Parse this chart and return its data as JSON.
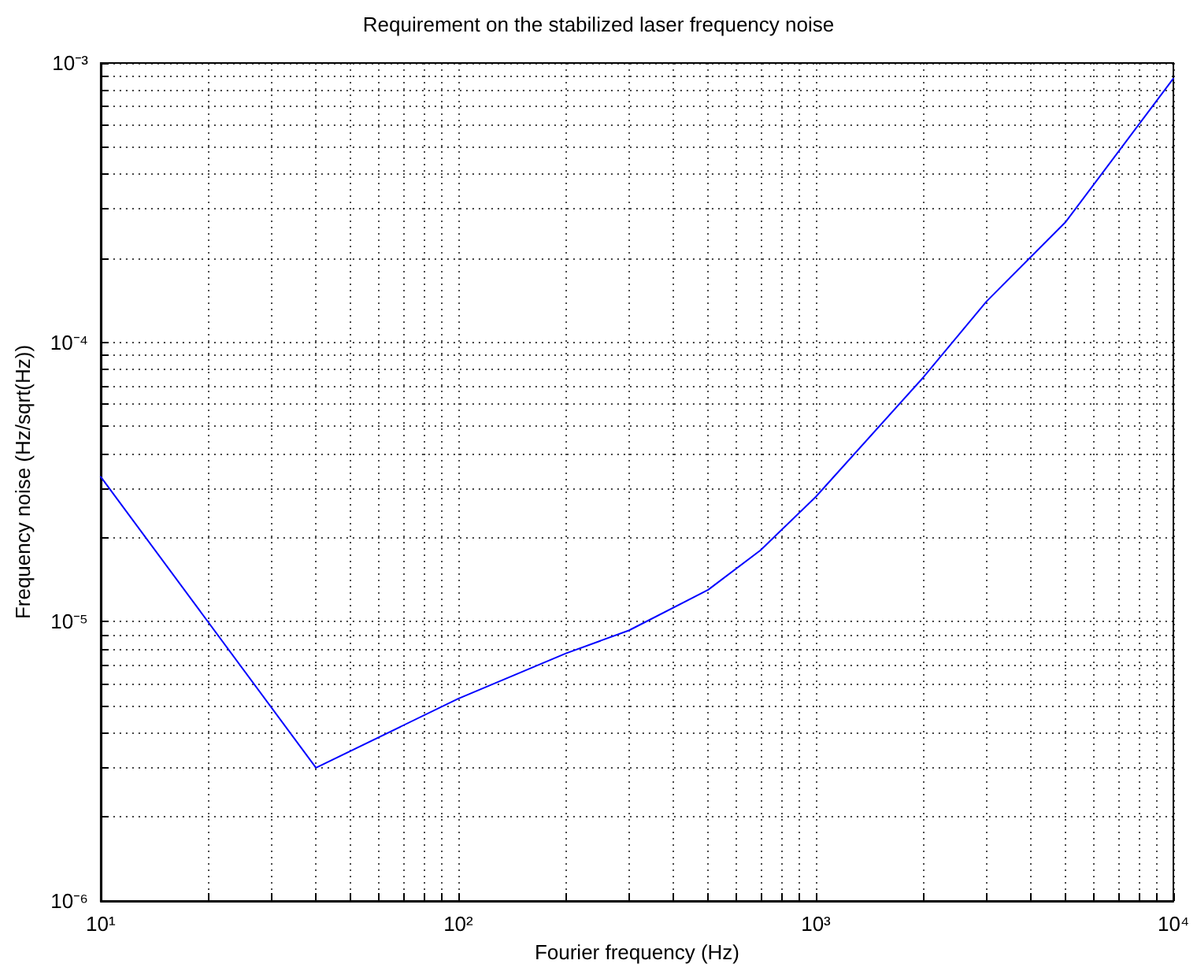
{
  "chart_data": {
    "type": "line",
    "title": "Requirement on the stabilized laser frequency noise",
    "xlabel": "Fourier frequency (Hz)",
    "ylabel": "Frequency noise (Hz/sqrt(Hz))",
    "x": [
      10,
      40,
      100,
      200,
      300,
      500,
      700,
      1000,
      2000,
      3000,
      5000,
      10000
    ],
    "series": [
      {
        "color": "#0000ff",
        "values": [
          3.3e-05,
          3e-06,
          5.3e-06,
          7.7e-06,
          9.3e-06,
          1.3e-05,
          1.8e-05,
          2.8e-05,
          7.5e-05,
          0.00014,
          0.00027,
          0.00088
        ]
      }
    ],
    "log": "xy",
    "grid": true,
    "marker": "none",
    "line_style": "solid",
    "xlim": [
      10,
      10000
    ],
    "ylim": [
      1e-06,
      0.001
    ],
    "xticks": [
      {
        "value": 10,
        "label": "10¹"
      },
      {
        "value": 20,
        "label": null
      },
      {
        "value": 30,
        "label": null
      },
      {
        "value": 40,
        "label": null
      },
      {
        "value": 50,
        "label": null
      },
      {
        "value": 60,
        "label": null
      },
      {
        "value": 70,
        "label": null
      },
      {
        "value": 80,
        "label": null
      },
      {
        "value": 90,
        "label": null
      },
      {
        "value": 100,
        "label": "10²"
      },
      {
        "value": 200,
        "label": null
      },
      {
        "value": 300,
        "label": null
      },
      {
        "value": 400,
        "label": null
      },
      {
        "value": 500,
        "label": null
      },
      {
        "value": 600,
        "label": null
      },
      {
        "value": 700,
        "label": null
      },
      {
        "value": 800,
        "label": null
      },
      {
        "value": 900,
        "label": null
      },
      {
        "value": 1000,
        "label": "10³"
      },
      {
        "value": 2000,
        "label": null
      },
      {
        "value": 3000,
        "label": null
      },
      {
        "value": 4000,
        "label": null
      },
      {
        "value": 5000,
        "label": null
      },
      {
        "value": 6000,
        "label": null
      },
      {
        "value": 7000,
        "label": null
      },
      {
        "value": 8000,
        "label": null
      },
      {
        "value": 9000,
        "label": null
      },
      {
        "value": 10000,
        "label": "10⁴"
      }
    ],
    "yticks": [
      {
        "value": 1e-06,
        "label": "10⁻⁶"
      },
      {
        "value": 2e-06,
        "label": null
      },
      {
        "value": 3e-06,
        "label": null
      },
      {
        "value": 4e-06,
        "label": null
      },
      {
        "value": 5e-06,
        "label": null
      },
      {
        "value": 6e-06,
        "label": null
      },
      {
        "value": 7e-06,
        "label": null
      },
      {
        "value": 8e-06,
        "label": null
      },
      {
        "value": 9e-06,
        "label": null
      },
      {
        "value": 1e-05,
        "label": "10⁻⁵"
      },
      {
        "value": 2e-05,
        "label": null
      },
      {
        "value": 3e-05,
        "label": null
      },
      {
        "value": 4e-05,
        "label": null
      },
      {
        "value": 5e-05,
        "label": null
      },
      {
        "value": 6e-05,
        "label": null
      },
      {
        "value": 7e-05,
        "label": null
      },
      {
        "value": 8e-05,
        "label": null
      },
      {
        "value": 9e-05,
        "label": null
      },
      {
        "value": 0.0001,
        "label": "10⁻⁴"
      },
      {
        "value": 0.0002,
        "label": null
      },
      {
        "value": 0.0003,
        "label": null
      },
      {
        "value": 0.0004,
        "label": null
      },
      {
        "value": 0.0005,
        "label": null
      },
      {
        "value": 0.0006,
        "label": null
      },
      {
        "value": 0.0007,
        "label": null
      },
      {
        "value": 0.0008,
        "label": null
      },
      {
        "value": 0.0009,
        "label": null
      },
      {
        "value": 0.001,
        "label": "10⁻³"
      }
    ]
  }
}
